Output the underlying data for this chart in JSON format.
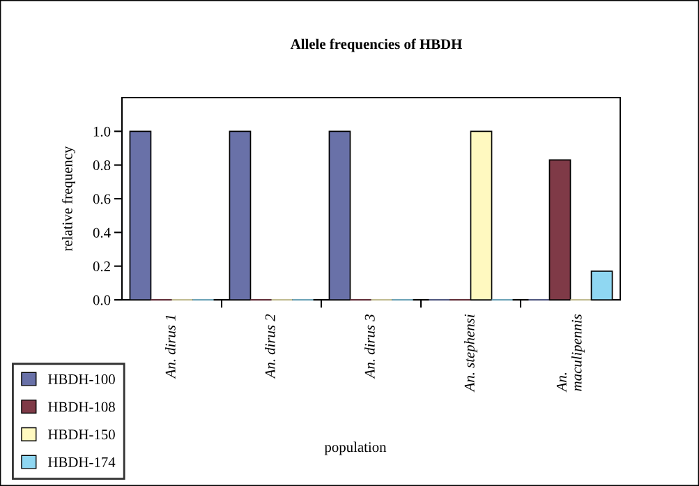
{
  "chart_data": {
    "type": "bar",
    "title": "Allele frequencies of HBDH",
    "xlabel": "population",
    "ylabel": "relative frequency",
    "categories": [
      "An. dirus 1",
      "An. dirus 2",
      "An. dirus 3",
      "An. stephensi",
      "An.\nmaculipennis"
    ],
    "series": [
      {
        "name": "HBDH-100",
        "color": "#6971a8",
        "values": [
          1.0,
          1.0,
          1.0,
          0,
          0
        ]
      },
      {
        "name": "HBDH-108",
        "color": "#7f3a47",
        "values": [
          0,
          0,
          0,
          0,
          0.83
        ]
      },
      {
        "name": "HBDH-150",
        "color": "#fff9c0",
        "values": [
          0,
          0,
          0,
          1.0,
          0
        ]
      },
      {
        "name": "HBDH-174",
        "color": "#8fd7f2",
        "values": [
          0,
          0,
          0,
          0,
          0.17
        ]
      }
    ],
    "ylim": [
      0,
      1.2
    ],
    "yticks": [
      {
        "value": 0,
        "label": "0.0"
      },
      {
        "value": 0.2,
        "label": "0.2"
      },
      {
        "value": 0.4,
        "label": "0.4"
      },
      {
        "value": 0.6,
        "label": "0.6"
      },
      {
        "value": 0.8,
        "label": "0.8"
      },
      {
        "value": 1.0,
        "label": "1.0"
      }
    ],
    "grid": false,
    "legend": "bottom left"
  }
}
